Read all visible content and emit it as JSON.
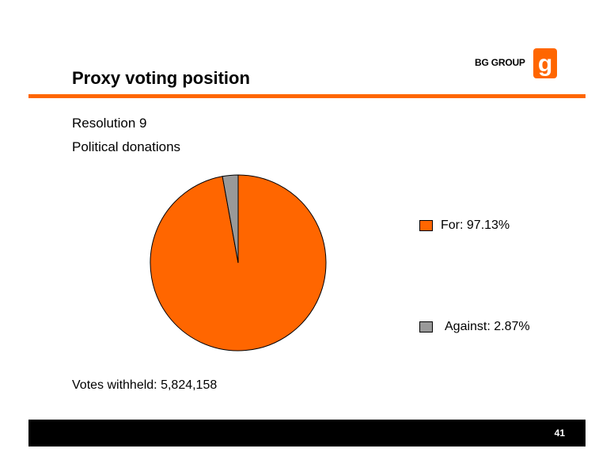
{
  "header": {
    "logo_text": "BG GROUP",
    "title": "Proxy voting position"
  },
  "subtitle": {
    "line1": "Resolution 9",
    "line2": "Political donations"
  },
  "chart_data": {
    "type": "pie",
    "categories": [
      "For",
      "Against"
    ],
    "values": [
      97.13,
      2.87
    ],
    "colors": [
      "#ff6600",
      "#999999"
    ],
    "legend": [
      {
        "label": "For: 97.13%",
        "color": "#ff6600"
      },
      {
        "label": "Against: 2.87%",
        "color": "#999999"
      }
    ],
    "legend_position": "right"
  },
  "footnote": "Votes withheld: 5,824,158",
  "footer": {
    "page_number": "41"
  },
  "colors": {
    "accent": "#ff6600",
    "footer_bg": "#000000"
  }
}
